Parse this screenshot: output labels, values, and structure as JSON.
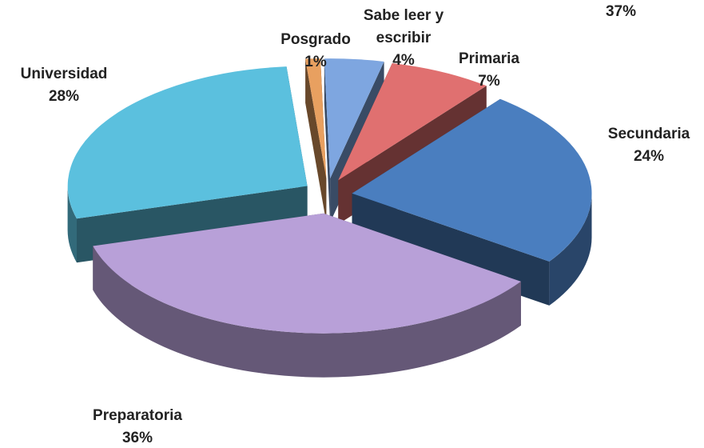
{
  "chart_data": {
    "type": "pie",
    "categories": [
      "Posgrado",
      "Sabe leer y escribir",
      "Primaria",
      "Secundaria",
      "Preparatoria",
      "Universidad"
    ],
    "values": [
      1,
      4,
      7,
      24,
      36,
      28
    ],
    "value_labels": [
      "1%",
      "4%",
      "7%",
      "24%",
      "36%",
      "28%"
    ],
    "colors": [
      "#e8a060",
      "#7ea6e0",
      "#e07070",
      "#4a7ebf",
      "#b8a0d8",
      "#5bc0de"
    ],
    "annotations": [
      "37%"
    ]
  }
}
